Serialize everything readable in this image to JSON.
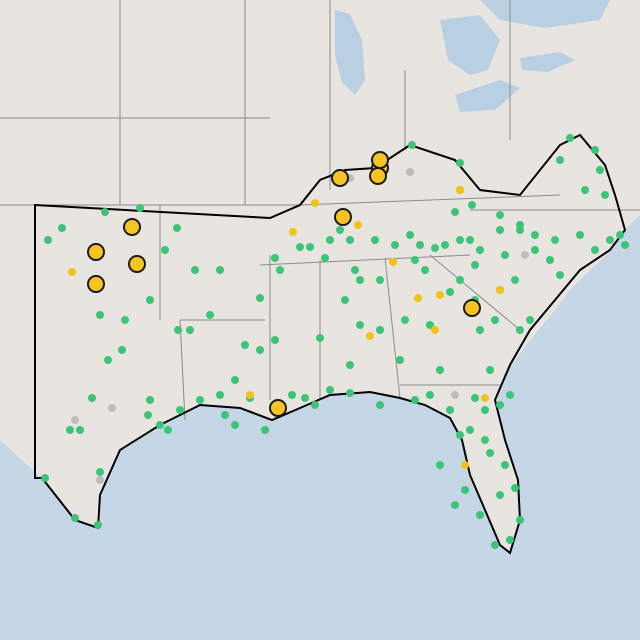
{
  "map": {
    "colors": {
      "land": "#e8e4e0",
      "water": "#c5d7e6",
      "lake": "#b9cfe2",
      "state_border": "#8c8c8c",
      "region_outline": "#000000",
      "marker_green": "#3cc578",
      "marker_yellow": "#f2c21b",
      "marker_gray": "#bdbdbd",
      "hotspot_fill": "#f4c522",
      "hotspot_stroke": "#1a1a1a"
    },
    "marker_categories": [
      "green",
      "yellow",
      "gray"
    ],
    "hotspot_count": 12
  }
}
